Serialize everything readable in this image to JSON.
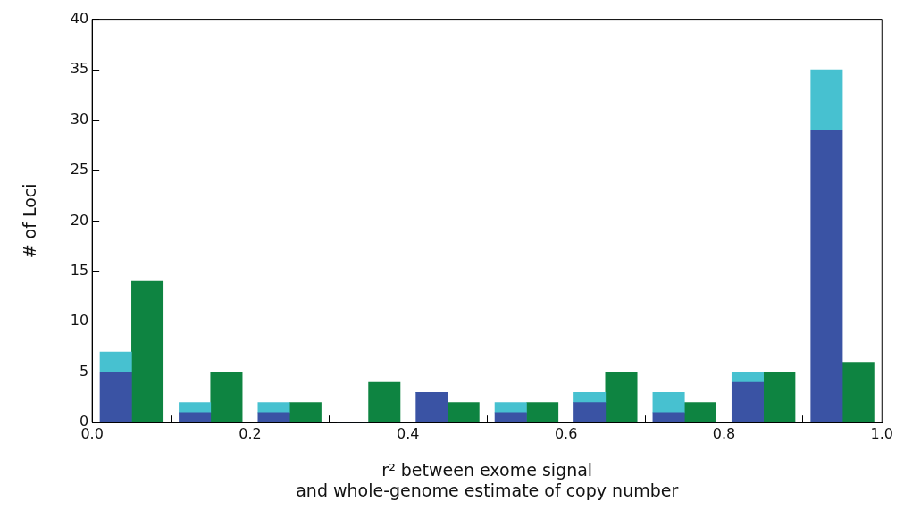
{
  "chart_data": {
    "type": "bar",
    "stacked": true,
    "xlabel": "r² between exome signal\nand whole-genome estimate of copy number",
    "ylabel": "# of Loci",
    "xlim": [
      0,
      1
    ],
    "xticks": [
      {
        "value": 0,
        "label": "0.0"
      },
      {
        "value": 0.2,
        "label": "0.2"
      },
      {
        "value": 0.4,
        "label": "0.4"
      },
      {
        "value": 0.6,
        "label": "0.6"
      },
      {
        "value": 0.8,
        "label": "0.8"
      },
      {
        "value": 1,
        "label": "1.0"
      }
    ],
    "ylim": [
      0,
      40
    ],
    "yticks": [
      0,
      5,
      10,
      15,
      20,
      25,
      30,
      35,
      40
    ],
    "grid": false,
    "x": [
      0.03,
      0.07,
      0.13,
      0.17,
      0.23,
      0.27,
      0.33,
      0.37,
      0.43,
      0.47,
      0.53,
      0.57,
      0.63,
      0.67,
      0.73,
      0.77,
      0.83,
      0.87,
      0.93,
      0.97
    ],
    "series": [
      {
        "color": "#3a53a4",
        "values": [
          5,
          null,
          1,
          null,
          1,
          null,
          0,
          null,
          3,
          null,
          1,
          null,
          2,
          null,
          1,
          null,
          4,
          null,
          29,
          null
        ]
      },
      {
        "color": "#47c1d0",
        "values": [
          2,
          null,
          1,
          null,
          1,
          null,
          0,
          null,
          0,
          null,
          1,
          null,
          1,
          null,
          2,
          null,
          1,
          null,
          6,
          null
        ]
      },
      {
        "color": "#0e8441",
        "values": [
          null,
          14,
          null,
          5,
          null,
          2,
          null,
          4,
          null,
          2,
          null,
          2,
          null,
          5,
          null,
          2,
          null,
          5,
          null,
          6
        ]
      }
    ]
  }
}
